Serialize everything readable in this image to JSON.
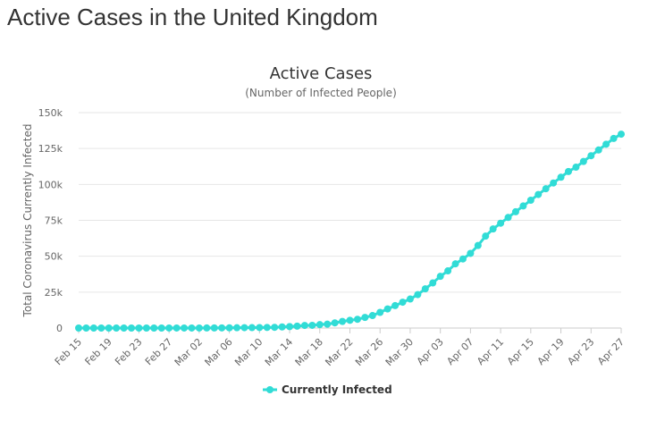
{
  "page": {
    "title": "Active Cases in the United Kingdom"
  },
  "chart_data": {
    "type": "line",
    "title": "Active Cases",
    "subtitle": "(Number of Infected People)",
    "ylabel": "Total Coronavirus Currently Infected",
    "xlabel": "",
    "ylim": [
      0,
      150000
    ],
    "y_ticks": [
      0,
      25000,
      50000,
      75000,
      100000,
      125000,
      150000
    ],
    "y_tick_labels": [
      "0",
      "25k",
      "50k",
      "75k",
      "100k",
      "125k",
      "150k"
    ],
    "x_tick_labels": [
      "Feb 15",
      "Feb 19",
      "Feb 23",
      "Feb 27",
      "Mar 02",
      "Mar 06",
      "Mar 10",
      "Mar 14",
      "Mar 18",
      "Mar 22",
      "Mar 26",
      "Mar 30",
      "Apr 03",
      "Apr 07",
      "Apr 11",
      "Apr 15",
      "Apr 19",
      "Apr 23",
      "Apr 27"
    ],
    "grid": true,
    "legend_position": "bottom-center",
    "colors": {
      "series": "#31dcd6",
      "grid": "#e6e6e6",
      "axis_text": "#666666",
      "title": "#333333"
    },
    "x": [
      "Feb 15",
      "Feb 16",
      "Feb 17",
      "Feb 18",
      "Feb 19",
      "Feb 20",
      "Feb 21",
      "Feb 22",
      "Feb 23",
      "Feb 24",
      "Feb 25",
      "Feb 26",
      "Feb 27",
      "Feb 28",
      "Feb 29",
      "Mar 01",
      "Mar 02",
      "Mar 03",
      "Mar 04",
      "Mar 05",
      "Mar 06",
      "Mar 07",
      "Mar 08",
      "Mar 09",
      "Mar 10",
      "Mar 11",
      "Mar 12",
      "Mar 13",
      "Mar 14",
      "Mar 15",
      "Mar 16",
      "Mar 17",
      "Mar 18",
      "Mar 19",
      "Mar 20",
      "Mar 21",
      "Mar 22",
      "Mar 23",
      "Mar 24",
      "Mar 25",
      "Mar 26",
      "Mar 27",
      "Mar 28",
      "Mar 29",
      "Mar 30",
      "Mar 31",
      "Apr 01",
      "Apr 02",
      "Apr 03",
      "Apr 04",
      "Apr 05",
      "Apr 06",
      "Apr 07",
      "Apr 08",
      "Apr 09",
      "Apr 10",
      "Apr 11",
      "Apr 12",
      "Apr 13",
      "Apr 14",
      "Apr 15",
      "Apr 16",
      "Apr 17",
      "Apr 18",
      "Apr 19",
      "Apr 20",
      "Apr 21",
      "Apr 22",
      "Apr 23",
      "Apr 24",
      "Apr 25",
      "Apr 26",
      "Apr 27"
    ],
    "series": [
      {
        "name": "Currently Infected",
        "values": [
          8,
          8,
          8,
          8,
          8,
          8,
          8,
          8,
          8,
          8,
          8,
          8,
          12,
          15,
          18,
          30,
          35,
          45,
          80,
          110,
          160,
          200,
          250,
          300,
          350,
          400,
          500,
          780,
          1020,
          1320,
          1800,
          1900,
          2400,
          2700,
          3600,
          4600,
          5400,
          6100,
          7400,
          8700,
          10900,
          13300,
          15600,
          18000,
          20200,
          23300,
          27300,
          31400,
          36000,
          39800,
          44700,
          48100,
          52000,
          57500,
          64000,
          69000,
          73000,
          77000,
          81000,
          85000,
          89000,
          93000,
          97000,
          101000,
          105000,
          109000,
          112000,
          116000,
          120000,
          124000,
          128000,
          132000,
          135000
        ]
      }
    ]
  }
}
